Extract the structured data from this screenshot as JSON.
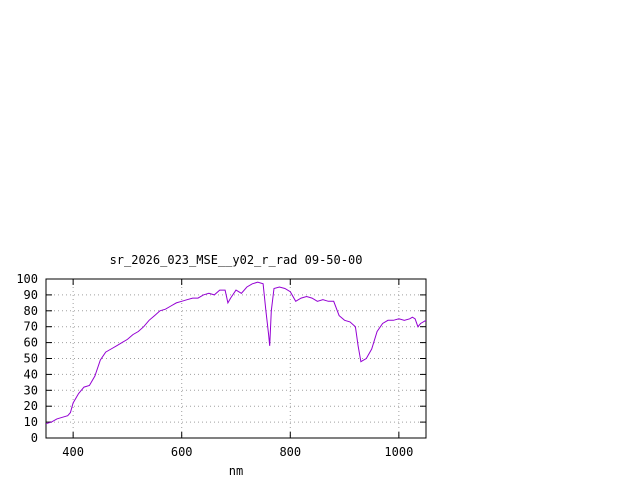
{
  "chart_data": {
    "type": "line",
    "title": "sr_2026_023_MSE__y02_r_rad 09-50-00",
    "xlabel": "nm",
    "ylabel": "",
    "xlim": [
      350,
      1050
    ],
    "ylim": [
      0,
      100
    ],
    "x_ticks": [
      400,
      600,
      800,
      1000
    ],
    "y_ticks": [
      0,
      10,
      20,
      30,
      40,
      50,
      60,
      70,
      80,
      90,
      100
    ],
    "grid": true,
    "line_color": "#9400d3",
    "series": [
      {
        "x": [
          350,
          360,
          370,
          380,
          390,
          395,
          400,
          410,
          420,
          430,
          440,
          450,
          460,
          470,
          480,
          490,
          500,
          510,
          520,
          530,
          540,
          550,
          560,
          570,
          580,
          590,
          600,
          610,
          620,
          630,
          640,
          650,
          660,
          670,
          680,
          685,
          690,
          700,
          710,
          720,
          730,
          740,
          750,
          755,
          760,
          762,
          765,
          770,
          780,
          790,
          800,
          810,
          820,
          830,
          840,
          850,
          860,
          870,
          880,
          890,
          900,
          910,
          920,
          925,
          930,
          935,
          940,
          950,
          960,
          970,
          980,
          990,
          1000,
          1010,
          1020,
          1025,
          1030,
          1035,
          1040,
          1050
        ],
        "y": [
          9,
          10,
          12,
          13,
          14,
          16,
          22,
          28,
          32,
          33,
          39,
          49,
          54,
          56,
          58,
          60,
          62,
          65,
          67,
          70,
          74,
          77,
          80,
          81,
          83,
          85,
          86,
          87,
          88,
          88,
          90,
          91,
          90,
          93,
          93,
          85,
          88,
          93,
          91,
          95,
          97,
          98,
          97,
          80,
          65,
          58,
          80,
          94,
          95,
          94,
          92,
          86,
          88,
          89,
          88,
          86,
          87,
          86,
          86,
          77,
          74,
          73,
          70,
          58,
          48,
          49,
          50,
          56,
          67,
          72,
          74,
          74,
          75,
          74,
          75,
          76,
          75,
          70,
          72,
          74
        ]
      }
    ]
  }
}
